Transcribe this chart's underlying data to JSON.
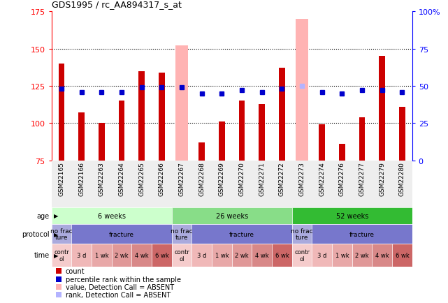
{
  "title": "GDS1995 / rc_AA894317_s_at",
  "samples": [
    "GSM22165",
    "GSM22166",
    "GSM22263",
    "GSM22264",
    "GSM22265",
    "GSM22266",
    "GSM22267",
    "GSM22268",
    "GSM22269",
    "GSM22270",
    "GSM22271",
    "GSM22272",
    "GSM22273",
    "GSM22274",
    "GSM22276",
    "GSM22277",
    "GSM22279",
    "GSM22280"
  ],
  "count_values": [
    140,
    107,
    100,
    115,
    135,
    134,
    75,
    87,
    101,
    115,
    113,
    137,
    75,
    99,
    86,
    104,
    145,
    111
  ],
  "rank_values": [
    48,
    46,
    46,
    46,
    49,
    49,
    49,
    45,
    45,
    47,
    46,
    48,
    50,
    46,
    45,
    47,
    47,
    46
  ],
  "absent_value": [
    false,
    false,
    false,
    false,
    false,
    false,
    true,
    false,
    false,
    false,
    false,
    false,
    true,
    false,
    false,
    false,
    false,
    false
  ],
  "absent_rank": [
    false,
    false,
    false,
    false,
    false,
    false,
    false,
    false,
    false,
    false,
    false,
    false,
    true,
    false,
    false,
    false,
    false,
    false
  ],
  "absent_count_values": [
    0,
    0,
    0,
    0,
    0,
    0,
    152,
    0,
    0,
    0,
    0,
    0,
    170,
    0,
    0,
    0,
    0,
    0
  ],
  "absent_rank_values": [
    0,
    0,
    0,
    0,
    0,
    0,
    0,
    0,
    0,
    0,
    0,
    0,
    50,
    0,
    0,
    0,
    0,
    0
  ],
  "ylim": [
    75,
    175
  ],
  "yticks_left": [
    75,
    100,
    125,
    150,
    175
  ],
  "yticks_right": [
    0,
    25,
    50,
    75,
    100
  ],
  "bar_color": "#cc0000",
  "rank_color": "#0000cc",
  "absent_bar_color": "#ffb3b3",
  "absent_rank_color": "#b3b3ff",
  "age_groups": [
    {
      "label": "6 weeks",
      "start": 0,
      "end": 6,
      "color": "#ccffcc"
    },
    {
      "label": "26 weeks",
      "start": 6,
      "end": 12,
      "color": "#88dd88"
    },
    {
      "label": "52 weeks",
      "start": 12,
      "end": 18,
      "color": "#33bb33"
    }
  ],
  "protocol_groups": [
    {
      "label": "no frac\nture",
      "start": 0,
      "end": 1,
      "color": "#aaaadd"
    },
    {
      "label": "fracture",
      "start": 1,
      "end": 6,
      "color": "#7777cc"
    },
    {
      "label": "no frac\nture",
      "start": 6,
      "end": 7,
      "color": "#aaaadd"
    },
    {
      "label": "fracture",
      "start": 7,
      "end": 12,
      "color": "#7777cc"
    },
    {
      "label": "no frac\nture",
      "start": 12,
      "end": 13,
      "color": "#aaaadd"
    },
    {
      "label": "fracture",
      "start": 13,
      "end": 18,
      "color": "#7777cc"
    }
  ],
  "time_groups": [
    {
      "label": "contr\nol",
      "start": 0,
      "end": 1,
      "color": "#f5cccc"
    },
    {
      "label": "3 d",
      "start": 1,
      "end": 2,
      "color": "#f0b8b8"
    },
    {
      "label": "1 wk",
      "start": 2,
      "end": 3,
      "color": "#e8a8a8"
    },
    {
      "label": "2 wk",
      "start": 3,
      "end": 4,
      "color": "#e09898"
    },
    {
      "label": "4 wk",
      "start": 4,
      "end": 5,
      "color": "#d88888"
    },
    {
      "label": "6 wk",
      "start": 5,
      "end": 6,
      "color": "#cc6666"
    },
    {
      "label": "contr\nol",
      "start": 6,
      "end": 7,
      "color": "#f5cccc"
    },
    {
      "label": "3 d",
      "start": 7,
      "end": 8,
      "color": "#f0b8b8"
    },
    {
      "label": "1 wk",
      "start": 8,
      "end": 9,
      "color": "#e8a8a8"
    },
    {
      "label": "2 wk",
      "start": 9,
      "end": 10,
      "color": "#e09898"
    },
    {
      "label": "4 wk",
      "start": 10,
      "end": 11,
      "color": "#d88888"
    },
    {
      "label": "6 wk",
      "start": 11,
      "end": 12,
      "color": "#cc6666"
    },
    {
      "label": "contr\nol",
      "start": 12,
      "end": 13,
      "color": "#f5cccc"
    },
    {
      "label": "3 d",
      "start": 13,
      "end": 14,
      "color": "#f0b8b8"
    },
    {
      "label": "1 wk",
      "start": 14,
      "end": 15,
      "color": "#e8a8a8"
    },
    {
      "label": "2 wk",
      "start": 15,
      "end": 16,
      "color": "#e09898"
    },
    {
      "label": "4 wk",
      "start": 16,
      "end": 17,
      "color": "#d88888"
    },
    {
      "label": "6 wk",
      "start": 17,
      "end": 18,
      "color": "#cc6666"
    }
  ],
  "legend_items": [
    {
      "label": "count",
      "color": "#cc0000"
    },
    {
      "label": "percentile rank within the sample",
      "color": "#0000cc"
    },
    {
      "label": "value, Detection Call = ABSENT",
      "color": "#ffb3b3"
    },
    {
      "label": "rank, Detection Call = ABSENT",
      "color": "#b3b3ff"
    }
  ]
}
